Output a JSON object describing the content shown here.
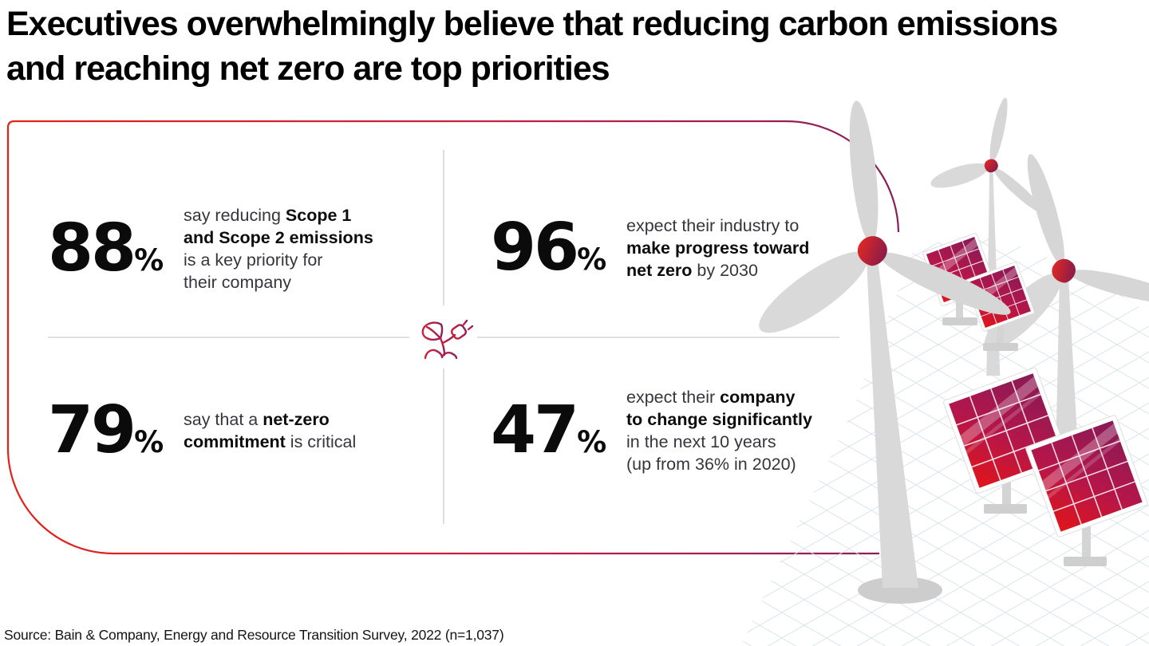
{
  "title": "Executives overwhelmingly believe that reducing carbon emissions and reaching net zero are top priorities",
  "source": "Source: Bain & Company, Energy and Resource Transition Survey, 2022 (n=1,037)",
  "colors": {
    "accent_red": "#e2231a",
    "accent_purple": "#8a1e5c",
    "divider_gray": "#d5d5d5",
    "body_text": "#35363c",
    "bold_text": "#0c0c0c",
    "panel_red": "#e1151a",
    "panel_purple": "#871a57",
    "turbine_gray": "#d6d6d6",
    "floor_grid_blue": "#dbe3ec"
  },
  "icons": {
    "center": "plant-plug-icon"
  },
  "chart_data": {
    "type": "table",
    "title": "Executives overwhelmingly believe that reducing carbon emissions and reaching net zero are top priorities",
    "values": [
      88,
      96,
      79,
      47
    ],
    "unit": "%",
    "labels": [
      "say reducing Scope 1 and Scope 2 emissions is a key priority for their company",
      "expect their industry to make progress toward net zero by 2030",
      "say that a net-zero commitment is critical",
      "expect their company to change significantly in the next 10 years (up from 36% in 2020)"
    ],
    "annotations": [
      "up from 36% in 2020"
    ],
    "source": "Source: Bain & Company, Energy and Resource Transition Survey, 2022 (n=1,037)"
  },
  "stats": [
    {
      "value": "88",
      "suffix": "%",
      "lines": [
        [
          {
            "t": "say reducing ",
            "b": 0
          },
          {
            "t": "Scope 1",
            "b": 1
          }
        ],
        [
          {
            "t": "and Scope 2 emissions",
            "b": 1
          }
        ],
        [
          {
            "t": "is a key priority for",
            "b": 0
          }
        ],
        [
          {
            "t": "their company",
            "b": 0
          }
        ]
      ]
    },
    {
      "value": "96",
      "suffix": "%",
      "lines": [
        [
          {
            "t": "expect their industry to",
            "b": 0
          }
        ],
        [
          {
            "t": "make progress toward",
            "b": 1
          }
        ],
        [
          {
            "t": "net zero",
            "b": 1
          },
          {
            "t": " by 2030",
            "b": 0
          }
        ]
      ]
    },
    {
      "value": "79",
      "suffix": "%",
      "lines": [
        [
          {
            "t": "say that a ",
            "b": 0
          },
          {
            "t": "net-zero",
            "b": 1
          }
        ],
        [
          {
            "t": "commitment",
            "b": 1
          },
          {
            "t": " is critical",
            "b": 0
          }
        ]
      ]
    },
    {
      "value": "47",
      "suffix": "%",
      "lines": [
        [
          {
            "t": "expect their ",
            "b": 0
          },
          {
            "t": "company",
            "b": 1
          }
        ],
        [
          {
            "t": "to change significantly",
            "b": 1
          }
        ],
        [
          {
            "t": "in the next 10 years",
            "b": 0
          }
        ],
        [
          {
            "t": "(up from 36% in 2020)",
            "b": 0
          }
        ]
      ]
    }
  ]
}
